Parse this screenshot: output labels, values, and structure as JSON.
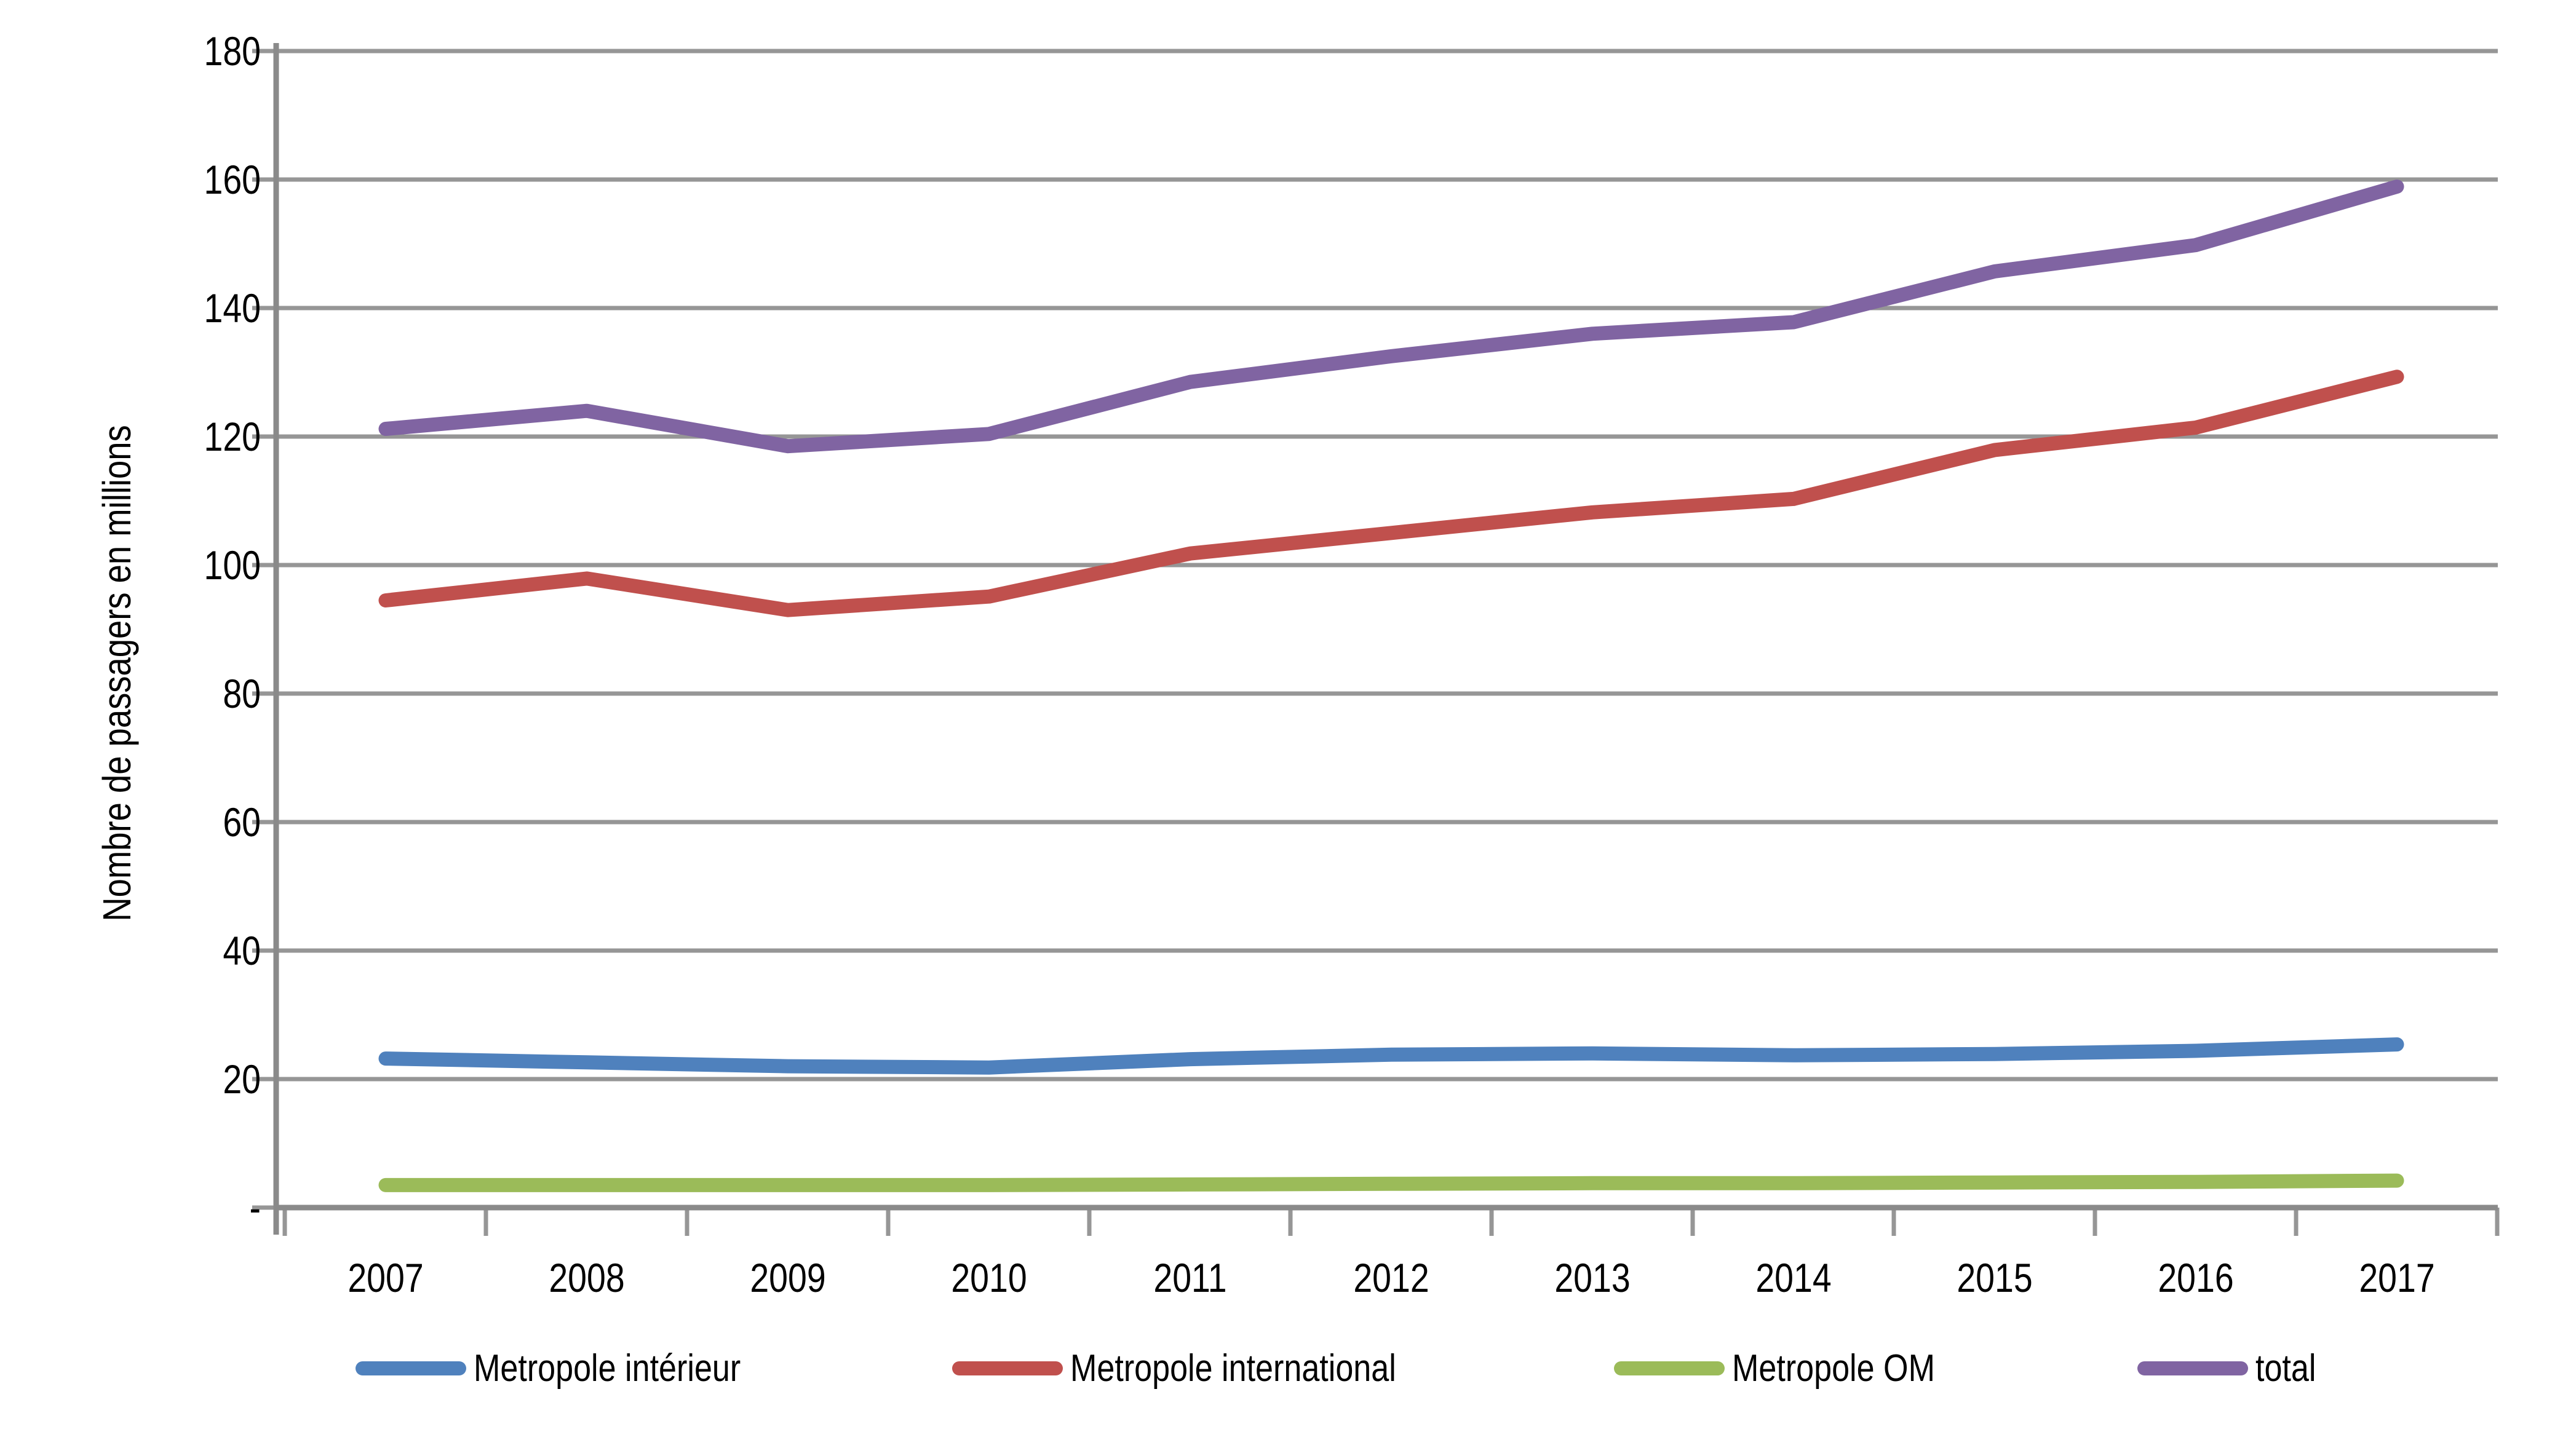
{
  "colors": {
    "background": "#FFFFFF",
    "gridline": "#969696",
    "axis": "#8A8A8A",
    "text": "#000000",
    "series_blue": "#4F81BD",
    "series_red": "#C0504D",
    "series_green": "#9BBB59",
    "series_purple": "#8064A2"
  },
  "y_axis": {
    "title": "Nombre de passagers en millions",
    "tick_labels": [
      "180",
      "160",
      "140",
      "120",
      "100",
      "80",
      "60",
      "40",
      "20",
      "-"
    ]
  },
  "x_axis": {
    "tick_labels": [
      "2007",
      "2008",
      "2009",
      "2010",
      "2011",
      "2012",
      "2013",
      "2014",
      "2015",
      "2016",
      "2017"
    ]
  },
  "legend": {
    "items": [
      {
        "label": "Metropole intérieur",
        "color": "#4F81BD"
      },
      {
        "label": "Metropole international",
        "color": "#C0504D"
      },
      {
        "label": "Metropole OM",
        "color": "#9BBB59"
      },
      {
        "label": "total",
        "color": "#8064A2"
      }
    ]
  },
  "chart_data": {
    "type": "line",
    "title": "",
    "xlabel": "",
    "ylabel": "Nombre de passagers en millions",
    "categories": [
      2007,
      2008,
      2009,
      2010,
      2011,
      2012,
      2013,
      2014,
      2015,
      2016,
      2017
    ],
    "series": [
      {
        "name": "Metropole intérieur",
        "color": "#4F81BD",
        "values": [
          23.2,
          22.6,
          22.0,
          21.8,
          23.1,
          23.8,
          24.0,
          23.7,
          23.9,
          24.4,
          25.4
        ]
      },
      {
        "name": "Metropole international",
        "color": "#C0504D",
        "values": [
          94.5,
          97.9,
          93.0,
          95.1,
          101.8,
          105.0,
          108.2,
          110.3,
          117.9,
          121.4,
          129.3
        ]
      },
      {
        "name": "Metropole OM",
        "color": "#9BBB59",
        "values": [
          3.5,
          3.5,
          3.5,
          3.5,
          3.6,
          3.7,
          3.8,
          3.8,
          3.9,
          4.0,
          4.2
        ]
      },
      {
        "name": "total",
        "color": "#8064A2",
        "values": [
          121.2,
          124.0,
          118.5,
          120.4,
          128.5,
          132.5,
          136.0,
          137.8,
          145.7,
          149.8,
          158.9
        ]
      }
    ],
    "ylim": [
      0,
      180
    ],
    "ytick_step": 20,
    "grid": true,
    "legend_position": "bottom"
  }
}
